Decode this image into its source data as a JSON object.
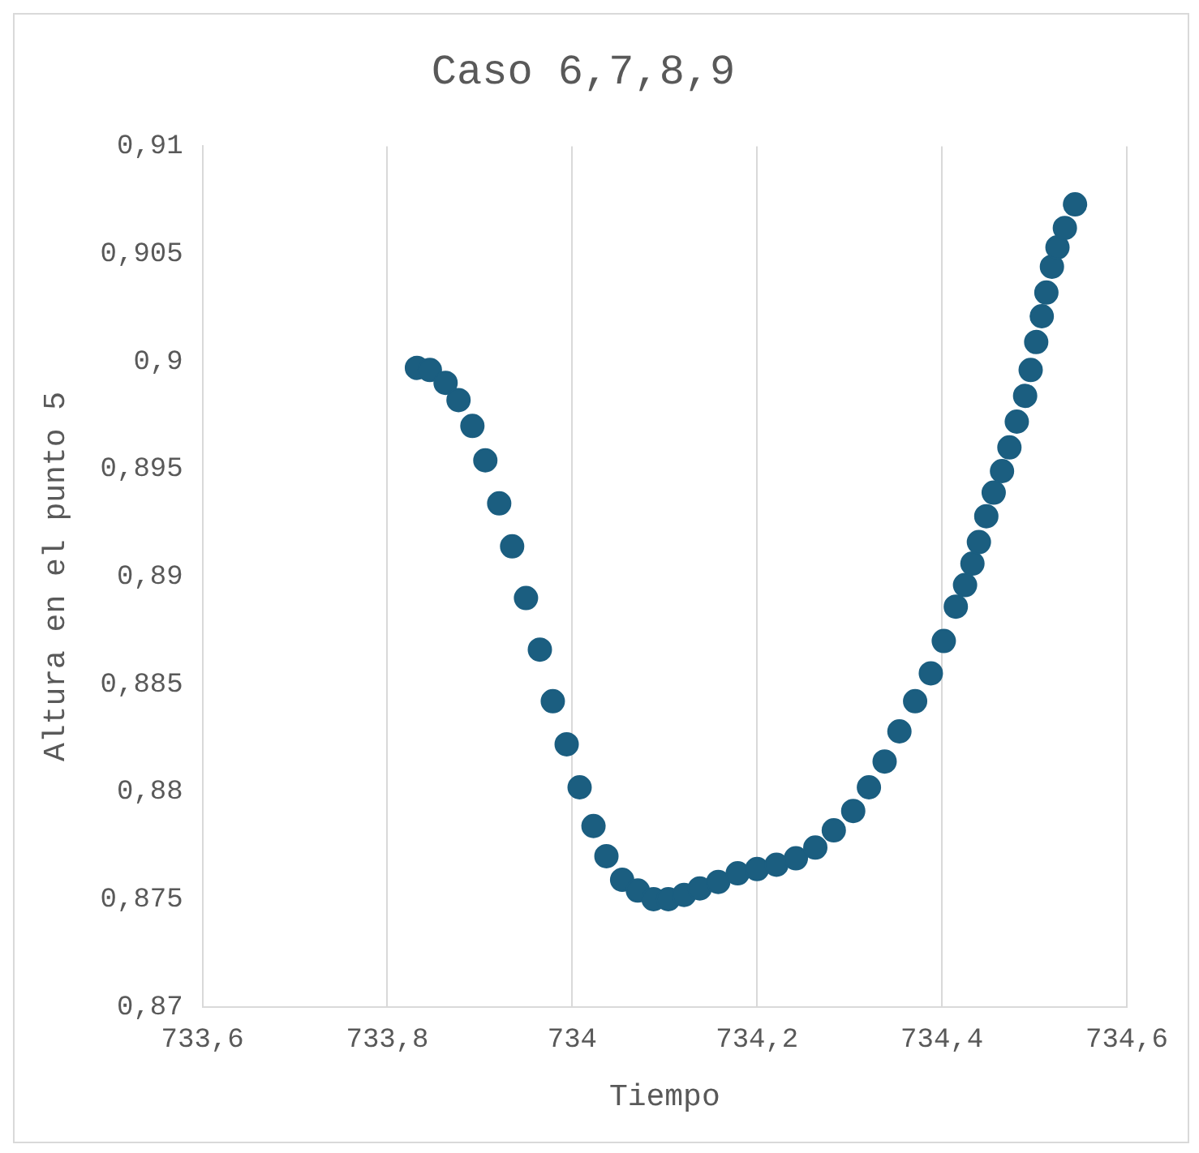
{
  "chart_data": {
    "type": "scatter",
    "title": "Caso 6,7,8,9",
    "xlabel": "Tiempo",
    "ylabel": "Altura en el punto 5",
    "x": [
      733.832,
      733.846,
      733.863,
      733.877,
      733.892,
      733.906,
      733.921,
      733.935,
      733.95,
      733.965,
      733.979,
      733.994,
      734.008,
      734.023,
      734.037,
      734.054,
      734.071,
      734.088,
      734.104,
      734.121,
      734.138,
      734.158,
      734.179,
      734.2,
      734.221,
      734.242,
      734.263,
      734.283,
      734.304,
      734.321,
      734.338,
      734.354,
      734.371,
      734.388,
      734.402,
      734.415,
      734.425,
      734.433,
      734.44,
      734.448,
      734.456,
      734.465,
      734.473,
      734.481,
      734.49,
      734.496,
      734.502,
      734.508,
      734.513,
      734.519,
      734.525,
      734.533,
      734.544
    ],
    "series": [
      {
        "color": "#1b5e80",
        "values": [
          0.8997,
          0.8996,
          0.899,
          0.8982,
          0.897,
          0.8954,
          0.8934,
          0.8914,
          0.889,
          0.8866,
          0.8842,
          0.8822,
          0.8802,
          0.8784,
          0.877,
          0.8759,
          0.8754,
          0.875,
          0.875,
          0.8752,
          0.8755,
          0.8758,
          0.8762,
          0.8764,
          0.8766,
          0.8769,
          0.8774,
          0.8782,
          0.8791,
          0.8802,
          0.8814,
          0.8828,
          0.8842,
          0.8855,
          0.887,
          0.8886,
          0.8896,
          0.8906,
          0.8916,
          0.8928,
          0.8939,
          0.8949,
          0.896,
          0.8972,
          0.8984,
          0.8996,
          0.9009,
          0.9021,
          0.9032,
          0.9044,
          0.9053,
          0.9062,
          0.9073
        ]
      }
    ],
    "xlim": [
      733.6,
      734.6
    ],
    "xticks": [
      {
        "value": 733.6,
        "label": "733,6"
      },
      {
        "value": 733.8,
        "label": "733,8"
      },
      734,
      {
        "value": 734.2,
        "label": "734,2"
      },
      {
        "value": 734.4,
        "label": "734,4"
      },
      {
        "value": 734.6,
        "label": "734,6"
      }
    ],
    "ylim": [
      0.87,
      0.91
    ],
    "yticks": [
      {
        "value": 0.87,
        "label": "0,87"
      },
      {
        "value": 0.875,
        "label": "0,875"
      },
      {
        "value": 0.88,
        "label": "0,88"
      },
      {
        "value": 0.885,
        "label": "0,885"
      },
      {
        "value": 0.89,
        "label": "0,89"
      },
      {
        "value": 0.895,
        "label": "0,895"
      },
      {
        "value": 0.9,
        "label": "0,9"
      },
      {
        "value": 0.905,
        "label": "0,905"
      },
      {
        "value": 0.91,
        "label": "0,91"
      }
    ],
    "grid": "x",
    "legend": false,
    "marker": "circle"
  }
}
